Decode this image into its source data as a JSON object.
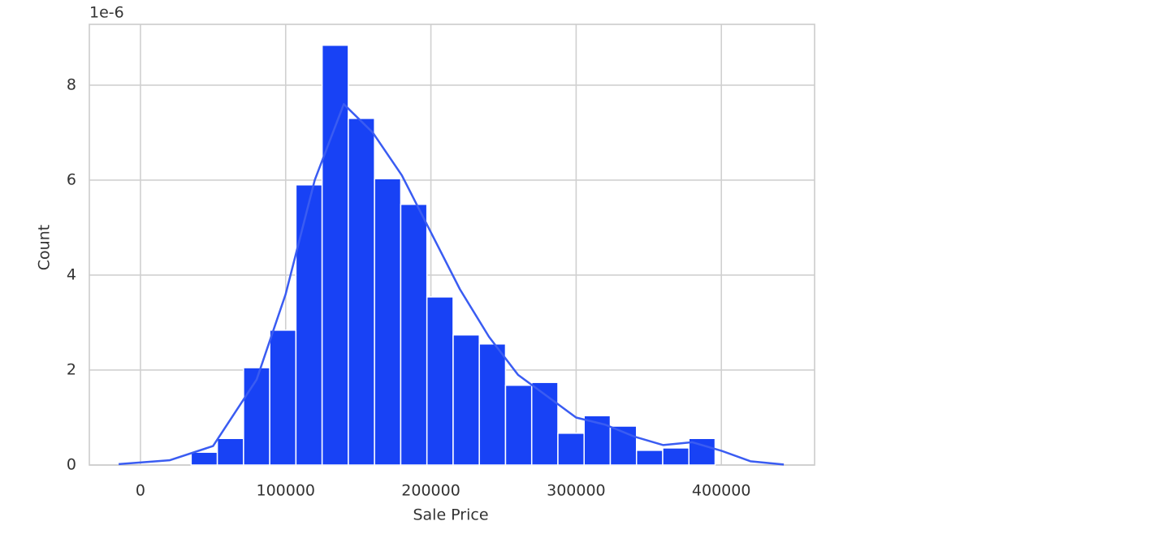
{
  "chart_data": {
    "type": "histogram",
    "xlabel": "Sale Price",
    "ylabel": "Count",
    "y_offset_label": "1e-6",
    "bins": [
      34900,
      52940,
      70980,
      89020,
      107060,
      125100,
      143140,
      161180,
      179220,
      197260,
      215300,
      233340,
      251380,
      269420,
      287460,
      305500,
      323540,
      341580,
      359620,
      377660,
      395700
    ],
    "values": [
      0.27,
      0.56,
      2.05,
      2.84,
      5.9,
      8.84,
      7.3,
      6.03,
      5.49,
      3.54,
      2.74,
      2.55,
      1.68,
      1.74,
      0.67,
      1.04,
      0.82,
      0.31,
      0.36,
      0.56
    ],
    "color": "#1842f5",
    "kde": {
      "color": "#3a5cf2",
      "x": [
        -15000,
        20000,
        50000,
        80000,
        100000,
        120000,
        140000,
        160000,
        180000,
        200000,
        220000,
        240000,
        260000,
        280000,
        300000,
        320000,
        340000,
        360000,
        380000,
        400000,
        420000,
        443000
      ],
      "values": [
        0.02,
        0.1,
        0.4,
        1.8,
        3.6,
        6.0,
        7.6,
        7.0,
        6.1,
        4.9,
        3.7,
        2.7,
        1.9,
        1.45,
        1.0,
        0.85,
        0.6,
        0.42,
        0.48,
        0.3,
        0.08,
        0.01
      ]
    },
    "xlim": [
      -35200,
      464200
    ],
    "ylim": [
      0,
      9.28
    ],
    "xticks": [
      0,
      100000,
      200000,
      300000,
      400000
    ],
    "yticks": [
      0,
      2,
      4,
      6,
      8
    ],
    "grid": true
  }
}
